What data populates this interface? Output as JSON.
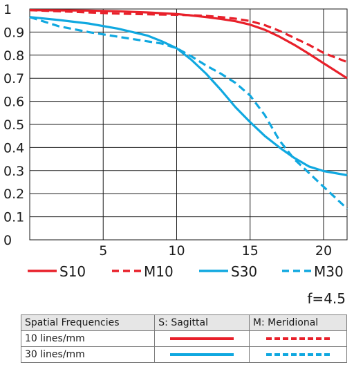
{
  "chart_data": {
    "type": "line",
    "xlabel": "",
    "ylabel": "",
    "xlim": [
      0,
      21.6
    ],
    "ylim": [
      0,
      1
    ],
    "xticks": [
      5,
      10,
      15,
      20
    ],
    "yticks": [
      0,
      0.1,
      0.2,
      0.3,
      0.4,
      0.5,
      0.6,
      0.7,
      0.8,
      0.9,
      1
    ],
    "ytick_labels": [
      "0",
      "0.1",
      "0.2",
      "0.3",
      "0.4",
      "0.5",
      "0.6",
      "0.7",
      "0.8",
      "0.9",
      "1"
    ],
    "grid": true,
    "legend_position": "bottom",
    "series": [
      {
        "name": "S10",
        "color": "#e8202a",
        "dash": "solid",
        "x": [
          0,
          2,
          4,
          6,
          8,
          10,
          11,
          12,
          13,
          14,
          15,
          16,
          17,
          18,
          19,
          20,
          21.6
        ],
        "y": [
          0.995,
          0.994,
          0.993,
          0.99,
          0.985,
          0.978,
          0.972,
          0.965,
          0.957,
          0.947,
          0.932,
          0.91,
          0.88,
          0.845,
          0.806,
          0.765,
          0.7
        ]
      },
      {
        "name": "M10",
        "color": "#e8202a",
        "dash": "dashed",
        "x": [
          0,
          2,
          4,
          6,
          8,
          10,
          11,
          12,
          13,
          14,
          15,
          16,
          17,
          18,
          19,
          20,
          21.6
        ],
        "y": [
          0.995,
          0.99,
          0.985,
          0.98,
          0.977,
          0.975,
          0.973,
          0.97,
          0.965,
          0.958,
          0.948,
          0.93,
          0.905,
          0.875,
          0.845,
          0.81,
          0.77
        ]
      },
      {
        "name": "S30",
        "color": "#10a8e0",
        "dash": "solid",
        "x": [
          0,
          2,
          4,
          6,
          8,
          9,
          10,
          11,
          12,
          13,
          14,
          15,
          16,
          17,
          18,
          19,
          20,
          21.6
        ],
        "y": [
          0.965,
          0.952,
          0.937,
          0.915,
          0.885,
          0.86,
          0.83,
          0.78,
          0.72,
          0.65,
          0.575,
          0.51,
          0.45,
          0.4,
          0.355,
          0.318,
          0.298,
          0.28
        ]
      },
      {
        "name": "M30",
        "color": "#10a8e0",
        "dash": "dashed",
        "x": [
          0,
          2,
          4,
          6,
          8,
          9,
          10,
          11,
          12,
          13,
          14,
          15,
          16,
          17,
          18,
          19,
          20,
          21.6
        ],
        "y": [
          0.965,
          0.925,
          0.9,
          0.88,
          0.86,
          0.85,
          0.83,
          0.795,
          0.755,
          0.72,
          0.68,
          0.625,
          0.54,
          0.43,
          0.35,
          0.29,
          0.23,
          0.135
        ]
      }
    ]
  },
  "aperture_label": "f=4.5",
  "table": {
    "headers": [
      "Spatial Frequencies",
      "S: Sagittal",
      "M: Meridional"
    ],
    "rows": [
      {
        "label": "10 lines/mm",
        "color": "#e8202a"
      },
      {
        "label": "30 lines/mm",
        "color": "#10a8e0"
      }
    ]
  }
}
